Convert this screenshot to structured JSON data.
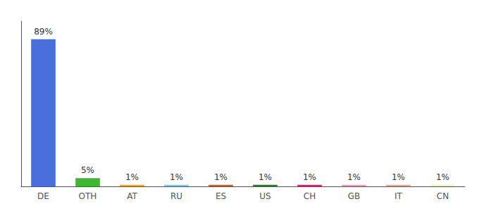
{
  "chart_data": {
    "type": "bar",
    "categories": [
      "DE",
      "OTH",
      "AT",
      "RU",
      "ES",
      "US",
      "CH",
      "GB",
      "IT",
      "CN"
    ],
    "values": [
      89,
      5,
      1,
      1,
      1,
      1,
      1,
      1,
      1,
      1
    ],
    "value_labels": [
      "89%",
      "5%",
      "1%",
      "1%",
      "1%",
      "1%",
      "1%",
      "1%",
      "1%",
      "1%"
    ],
    "colors": [
      "#4a6fdc",
      "#3db830",
      "#f5a623",
      "#7bc8f0",
      "#c0622a",
      "#2a7a2a",
      "#e8197a",
      "#e8a0b0",
      "#e8a898",
      "#f0f0c8"
    ],
    "ylim": [
      0,
      100
    ],
    "grid": false,
    "data_labels": true,
    "tick_labels": "x"
  }
}
